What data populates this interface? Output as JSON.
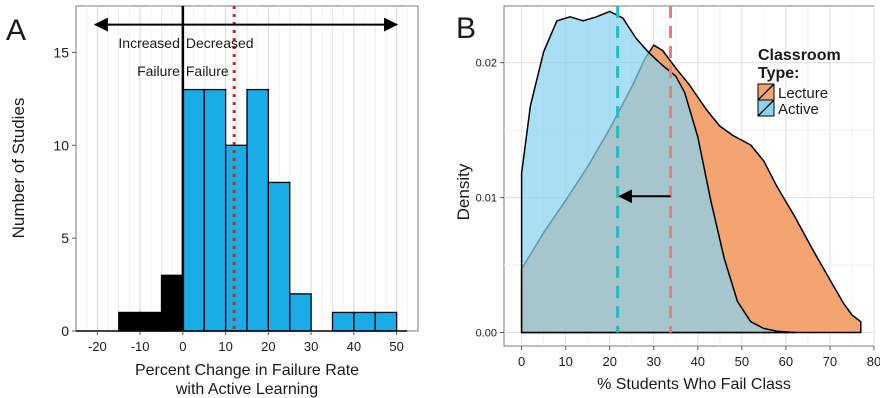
{
  "panels": {
    "a": {
      "letter": "A"
    },
    "b": {
      "letter": "B"
    }
  },
  "chart_data": [
    {
      "type": "bar",
      "panel": "A",
      "xlabel_line1": "Percent Change in Failure Rate",
      "xlabel_line2": "with Active Learning",
      "ylabel": "Number of Studies",
      "xlim": [
        -25,
        55
      ],
      "ylim": [
        0,
        17.5
      ],
      "xticks": [
        -20,
        -10,
        0,
        10,
        20,
        30,
        40,
        50
      ],
      "yticks": [
        0,
        5,
        10,
        15
      ],
      "bin_width": 5,
      "bins": [
        {
          "start": -15,
          "count": 1,
          "group": "increased"
        },
        {
          "start": -10,
          "count": 1,
          "group": "increased"
        },
        {
          "start": -5,
          "count": 3,
          "group": "increased"
        },
        {
          "start": 0,
          "count": 13,
          "group": "decreased"
        },
        {
          "start": 5,
          "count": 13,
          "group": "decreased"
        },
        {
          "start": 10,
          "count": 10,
          "group": "decreased"
        },
        {
          "start": 15,
          "count": 13,
          "group": "decreased"
        },
        {
          "start": 20,
          "count": 8,
          "group": "decreased"
        },
        {
          "start": 25,
          "count": 2,
          "group": "decreased"
        },
        {
          "start": 30,
          "count": 0,
          "group": "decreased"
        },
        {
          "start": 35,
          "count": 1,
          "group": "decreased"
        },
        {
          "start": 40,
          "count": 1,
          "group": "decreased"
        },
        {
          "start": 45,
          "count": 1,
          "group": "decreased"
        }
      ],
      "zero_line_x": 0,
      "mean_line_x": 12,
      "annotation_left_line1": "Increased",
      "annotation_left_line2": "Failure",
      "annotation_right_line1": "Decreased",
      "annotation_right_line2": "Failure",
      "arrow_span": [
        -20.5,
        50
      ],
      "arrow_y": 16.5,
      "colors": {
        "increased": "#000000",
        "decreased": "#1aace6",
        "mean_line": "#cc2222"
      },
      "grid": true
    },
    {
      "type": "area",
      "panel": "B",
      "xlabel": "% Students Who Fail Class",
      "ylabel": "Density",
      "xlim": [
        -4,
        80
      ],
      "ylim": [
        -0.001,
        0.0242
      ],
      "xticks": [
        0,
        10,
        20,
        30,
        40,
        50,
        60,
        70,
        80
      ],
      "yticks": [
        0.0,
        0.01,
        0.02
      ],
      "ytick_labels": [
        "0.00",
        "0.01",
        "0.02"
      ],
      "legend_title_line1": "Classroom",
      "legend_title_line2": "Type:",
      "legend_position": "top-right",
      "series": [
        {
          "name": "Lecture",
          "color": "#f4a470",
          "mean": 33.8,
          "points": [
            [
              0,
              0.0047
            ],
            [
              5,
              0.0074
            ],
            [
              10,
              0.0098
            ],
            [
              15,
              0.0123
            ],
            [
              20,
              0.0151
            ],
            [
              25,
              0.0182
            ],
            [
              28,
              0.0203
            ],
            [
              30,
              0.0213
            ],
            [
              32,
              0.0209
            ],
            [
              35,
              0.0196
            ],
            [
              38,
              0.0184
            ],
            [
              42,
              0.0165
            ],
            [
              45,
              0.0153
            ],
            [
              48,
              0.0146
            ],
            [
              52,
              0.0139
            ],
            [
              55,
              0.0127
            ],
            [
              58,
              0.0108
            ],
            [
              62,
              0.0086
            ],
            [
              66,
              0.0062
            ],
            [
              70,
              0.0039
            ],
            [
              73,
              0.0022
            ],
            [
              75,
              0.0013
            ],
            [
              77,
              0.0008
            ]
          ]
        },
        {
          "name": "Active",
          "color": "#87d3f0",
          "mean": 21.8,
          "points": [
            [
              0,
              0.0118
            ],
            [
              2,
              0.0168
            ],
            [
              5,
              0.0208
            ],
            [
              8,
              0.0231
            ],
            [
              11,
              0.0234
            ],
            [
              14,
              0.0231
            ],
            [
              17,
              0.0234
            ],
            [
              20,
              0.0238
            ],
            [
              23,
              0.0233
            ],
            [
              26,
              0.0218
            ],
            [
              29,
              0.0207
            ],
            [
              32,
              0.0198
            ],
            [
              35,
              0.019
            ],
            [
              37,
              0.0178
            ],
            [
              40,
              0.0145
            ],
            [
              43,
              0.0097
            ],
            [
              46,
              0.0055
            ],
            [
              49,
              0.0023
            ],
            [
              52,
              0.0008
            ],
            [
              55,
              0.0003
            ],
            [
              58,
              0.0001
            ],
            [
              62,
              0.0
            ]
          ]
        }
      ],
      "shift_arrow": {
        "from": 33.8,
        "to": 21.8,
        "y": 0.0101
      },
      "grid": true
    }
  ]
}
